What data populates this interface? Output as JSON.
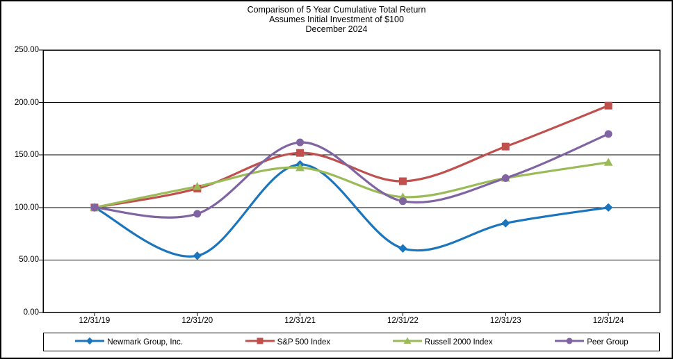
{
  "chart_data": {
    "type": "line",
    "title": "Comparison of 5 Year Cumulative Total Return",
    "subtitle": "Assumes Initial Investment of $100",
    "date_label": "December 2024",
    "categories": [
      "12/31/19",
      "12/31/20",
      "12/31/21",
      "12/31/22",
      "12/31/23",
      "12/31/24"
    ],
    "series": [
      {
        "name": "Newmark Group, Inc.",
        "color": "#1B75BC",
        "marker": "diamond",
        "values": [
          100,
          54,
          141,
          61,
          85,
          100
        ]
      },
      {
        "name": "S&P 500 Index",
        "color": "#C0504D",
        "marker": "square",
        "values": [
          100,
          118,
          152,
          125,
          158,
          197
        ]
      },
      {
        "name": "Russell 2000 Index",
        "color": "#9BBB59",
        "marker": "triangle",
        "values": [
          100,
          120,
          138,
          110,
          128,
          143
        ]
      },
      {
        "name": "Peer Group",
        "color": "#8064A2",
        "marker": "circle",
        "values": [
          100,
          94,
          162,
          106,
          128,
          170
        ]
      }
    ],
    "y_axis": {
      "min": 0,
      "max": 250,
      "step": 50,
      "tick_labels": [
        "0.00",
        "50.00",
        "100.00",
        "150.00",
        "200.00",
        "250.00"
      ]
    },
    "grid": true,
    "smooth_lines": true,
    "legend_position": "bottom",
    "axis_color": "#000000",
    "background_color": "#FFFFFF"
  }
}
